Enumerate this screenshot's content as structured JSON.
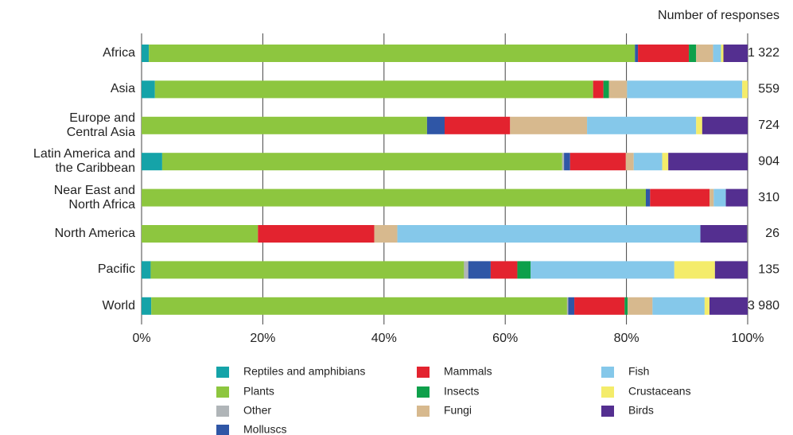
{
  "chart_data": {
    "type": "stacked_bar_horizontal",
    "right_header": "Number of responses",
    "categories": [
      "Africa",
      "Asia",
      "Europe and\nCentral Asia",
      "Latin America and\nthe Caribbean",
      "Near East and\nNorth Africa",
      "North America",
      "Pacific",
      "World"
    ],
    "responses": [
      "1 322",
      "559",
      "724",
      "904",
      "310",
      "26",
      "135",
      "3 980"
    ],
    "xlim": [
      0,
      100
    ],
    "xticks": [
      {
        "value": 0,
        "label": "0%"
      },
      {
        "value": 20,
        "label": "20%"
      },
      {
        "value": 40,
        "label": "40%"
      },
      {
        "value": 60,
        "label": "60%"
      },
      {
        "value": 80,
        "label": "80%"
      },
      {
        "value": 100,
        "label": "100%"
      }
    ],
    "grid": true,
    "series": [
      {
        "name": "Reptiles and amphibians",
        "color": "#15a3a8",
        "values": [
          1.2,
          2.2,
          0,
          3.4,
          0,
          0,
          1.5,
          1.6
        ]
      },
      {
        "name": "Plants",
        "color": "#8dc63f",
        "values": [
          80.2,
          72.3,
          47.1,
          66.0,
          83.2,
          19.2,
          51.7,
          68.6
        ]
      },
      {
        "name": "Other",
        "color": "#b0b5b8",
        "values": [
          0,
          0,
          0,
          0.3,
          0,
          0,
          0.7,
          0.2
        ]
      },
      {
        "name": "Molluscs",
        "color": "#2f56a6",
        "values": [
          0.5,
          0,
          2.9,
          1.0,
          0.7,
          0,
          3.7,
          1.0
        ]
      },
      {
        "name": "Mammals",
        "color": "#e3232f",
        "values": [
          8.4,
          1.7,
          10.8,
          9.2,
          9.8,
          19.2,
          4.4,
          8.3
        ]
      },
      {
        "name": "Insects",
        "color": "#0ea04b",
        "values": [
          1.2,
          0.9,
          0,
          0,
          0,
          0,
          2.2,
          0.5
        ]
      },
      {
        "name": "Fungi",
        "color": "#d7b98e",
        "values": [
          2.8,
          3.0,
          12.7,
          1.3,
          0.7,
          3.8,
          0,
          4.1
        ]
      },
      {
        "name": "Fish",
        "color": "#85c8ea",
        "values": [
          1.3,
          19.0,
          18.0,
          4.7,
          2.0,
          50.0,
          23.7,
          8.6
        ]
      },
      {
        "name": "Crustaceans",
        "color": "#f4ec6a",
        "values": [
          0.4,
          0.9,
          1.0,
          1.0,
          0,
          0,
          6.7,
          0.8
        ]
      },
      {
        "name": "Birds",
        "color": "#542f90",
        "values": [
          4.0,
          0,
          7.5,
          13.1,
          3.6,
          7.7,
          5.4,
          6.3
        ]
      }
    ]
  }
}
